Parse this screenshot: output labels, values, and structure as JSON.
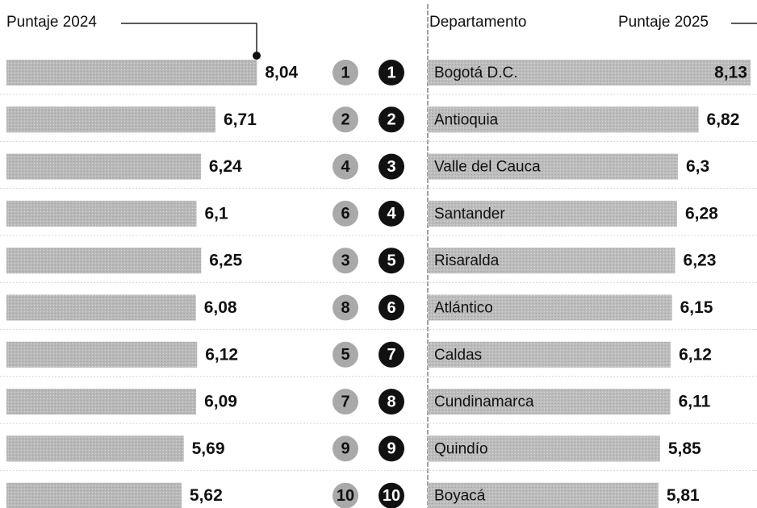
{
  "chart_data": {
    "type": "bar",
    "category_label": "Departamento",
    "categories": [
      "Bogotá D.C.",
      "Antioquia",
      "Valle del Cauca",
      "Santander",
      "Risaralda",
      "Atlántico",
      "Caldas",
      "Cundinamarca",
      "Quindío",
      "Boyacá"
    ],
    "rank_2024": [
      1,
      2,
      4,
      6,
      3,
      8,
      5,
      7,
      9,
      10
    ],
    "rank_2025": [
      1,
      2,
      3,
      4,
      5,
      6,
      7,
      8,
      9,
      10
    ],
    "series": [
      {
        "name": "Puntaje 2024",
        "color": "#b9b9b9",
        "values": [
          8.04,
          6.71,
          6.24,
          6.1,
          6.25,
          6.08,
          6.12,
          6.09,
          5.69,
          5.62
        ],
        "value_labels": [
          "8,04",
          "6,71",
          "6,24",
          "6,1",
          "6,25",
          "6,08",
          "6,12",
          "6,09",
          "5,69",
          "5,62"
        ]
      },
      {
        "name": "Puntaje 2025",
        "color": "#bdbdbd",
        "values": [
          8.13,
          6.82,
          6.3,
          6.28,
          6.23,
          6.15,
          6.12,
          6.11,
          5.85,
          5.81
        ],
        "value_labels": [
          "8,13",
          "6,82",
          "6,3",
          "6,28",
          "6,23",
          "6,15",
          "6,12",
          "6,11",
          "5,85",
          "5,81"
        ]
      }
    ]
  }
}
